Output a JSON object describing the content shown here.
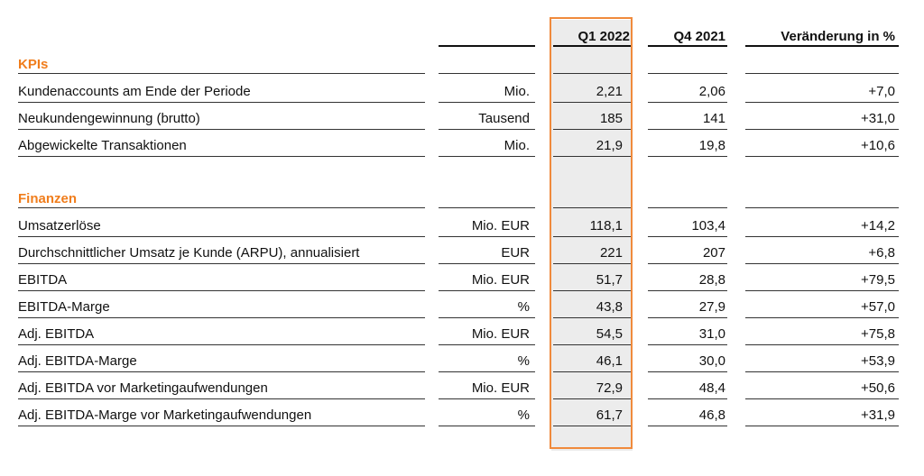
{
  "headers": {
    "q1": "Q1 2022",
    "q4": "Q4 2021",
    "change": "Veränderung in %"
  },
  "sections": {
    "kpis": "KPIs",
    "finanzen": "Finanzen"
  },
  "kpi_rows": [
    {
      "label": "Kundenaccounts am Ende der Periode",
      "unit": "Mio.",
      "q1": "2,21",
      "q4": "2,06",
      "change": "+7,0"
    },
    {
      "label": "Neukundengewinnung (brutto)",
      "unit": "Tausend",
      "q1": "185",
      "q4": "141",
      "change": "+31,0"
    },
    {
      "label": "Abgewickelte Transaktionen",
      "unit": "Mio.",
      "q1": "21,9",
      "q4": "19,8",
      "change": "+10,6"
    }
  ],
  "finance_rows": [
    {
      "label": "Umsatzerlöse",
      "unit": "Mio. EUR",
      "q1": "118,1",
      "q4": "103,4",
      "change": "+14,2"
    },
    {
      "label": "Durchschnittlicher Umsatz je Kunde (ARPU), annualisiert",
      "unit": "EUR",
      "q1": "221",
      "q4": "207",
      "change": "+6,8"
    },
    {
      "label": "EBITDA",
      "unit": "Mio. EUR",
      "q1": "51,7",
      "q4": "28,8",
      "change": "+79,5"
    },
    {
      "label": "EBITDA-Marge",
      "unit": "%",
      "q1": "43,8",
      "q4": "27,9",
      "change": "+57,0"
    },
    {
      "label": "Adj. EBITDA",
      "unit": "Mio. EUR",
      "q1": "54,5",
      "q4": "31,0",
      "change": "+75,8"
    },
    {
      "label": "Adj. EBITDA-Marge",
      "unit": "%",
      "q1": "46,1",
      "q4": "30,0",
      "change": "+53,9"
    },
    {
      "label": "Adj. EBITDA vor Marketingaufwendungen",
      "unit": "Mio. EUR",
      "q1": "72,9",
      "q4": "48,4",
      "change": "+50,6"
    },
    {
      "label": "Adj. EBITDA-Marge vor Marketingaufwendungen",
      "unit": "%",
      "q1": "61,7",
      "q4": "46,8",
      "change": "+31,9"
    }
  ],
  "colors": {
    "accent": "#f07d1c",
    "highlight_border": "#f08a3c",
    "highlight_fill": "#ececec"
  }
}
